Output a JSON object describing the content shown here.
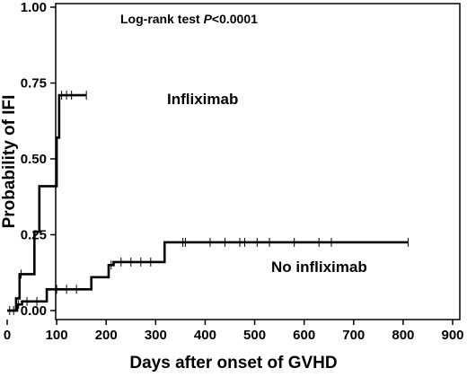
{
  "chart_data": {
    "type": "line",
    "subtype": "kaplan-meier-step",
    "xlabel": "Days after onset of GVHD",
    "ylabel": "Probability of IFI",
    "xlim": [
      0,
      900
    ],
    "ylim": [
      0,
      1
    ],
    "x_ticks": [
      0,
      100,
      200,
      300,
      400,
      500,
      600,
      700,
      800,
      900
    ],
    "y_ticks": [
      "0.00",
      "0.25",
      "0.50",
      "0.75",
      "1.00"
    ],
    "annotation": {
      "prefix": "Log-rank test ",
      "p_symbol": "P",
      "value": "<0.0001"
    },
    "grid": false,
    "series": [
      {
        "name": "Infliximab",
        "steps": [
          [
            0,
            0
          ],
          [
            10,
            0
          ],
          [
            18,
            0.04
          ],
          [
            25,
            0.12
          ],
          [
            50,
            0.12
          ],
          [
            55,
            0.26
          ],
          [
            65,
            0.41
          ],
          [
            95,
            0.41
          ],
          [
            100,
            0.57
          ],
          [
            105,
            0.71
          ],
          [
            160,
            0.71
          ]
        ],
        "censored": [
          [
            13,
            0
          ],
          [
            28,
            0.12
          ],
          [
            110,
            0.71
          ],
          [
            120,
            0.71
          ],
          [
            130,
            0.71
          ],
          [
            160,
            0.71
          ]
        ]
      },
      {
        "name": "No infliximab",
        "steps": [
          [
            0,
            0
          ],
          [
            12,
            0
          ],
          [
            20,
            0.02
          ],
          [
            30,
            0.03
          ],
          [
            75,
            0.03
          ],
          [
            80,
            0.07
          ],
          [
            160,
            0.07
          ],
          [
            170,
            0.11
          ],
          [
            200,
            0.11
          ],
          [
            205,
            0.15
          ],
          [
            215,
            0.16
          ],
          [
            315,
            0.16
          ],
          [
            318,
            0.225
          ],
          [
            810,
            0.225
          ]
        ],
        "censored": [
          [
            5,
            0
          ],
          [
            23,
            0.02
          ],
          [
            40,
            0.03
          ],
          [
            60,
            0.03
          ],
          [
            100,
            0.07
          ],
          [
            120,
            0.07
          ],
          [
            140,
            0.07
          ],
          [
            210,
            0.15
          ],
          [
            230,
            0.16
          ],
          [
            250,
            0.16
          ],
          [
            270,
            0.16
          ],
          [
            290,
            0.16
          ],
          [
            355,
            0.225
          ],
          [
            360,
            0.225
          ],
          [
            410,
            0.225
          ],
          [
            440,
            0.225
          ],
          [
            470,
            0.225
          ],
          [
            480,
            0.225
          ],
          [
            505,
            0.225
          ],
          [
            530,
            0.225
          ],
          [
            580,
            0.225
          ],
          [
            630,
            0.225
          ],
          [
            655,
            0.225
          ],
          [
            810,
            0.225
          ]
        ]
      }
    ]
  }
}
